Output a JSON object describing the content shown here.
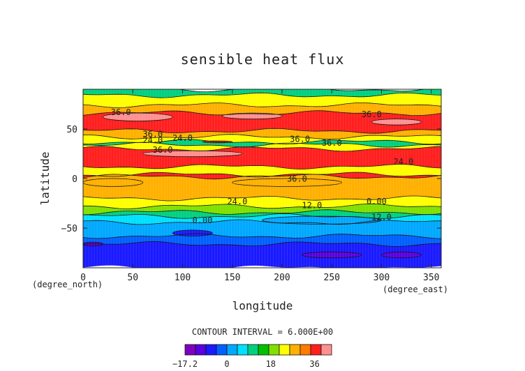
{
  "chart_data": {
    "type": "heatmap",
    "title": "sensible heat flux",
    "xlabel": "longitude",
    "ylabel": "latitude",
    "x_unit_label": "(degree_east)",
    "y_unit_label": "(degree_north)",
    "xlim": [
      0,
      360
    ],
    "ylim": [
      -90,
      90
    ],
    "x_ticks": [
      "0",
      "50",
      "100",
      "150",
      "200",
      "250",
      "300",
      "350"
    ],
    "y_ticks": [
      "50",
      "0",
      "−50"
    ],
    "contour_interval_text": "CONTOUR INTERVAL = 6.000E+00",
    "colorbar": {
      "tick_labels": [
        "−17.2",
        "0",
        "18",
        "36"
      ],
      "colors": [
        "#8000c0",
        "#5a00e0",
        "#1a1aff",
        "#0060ff",
        "#00a8ff",
        "#00e0ff",
        "#00d080",
        "#00c000",
        "#80e000",
        "#ffff00",
        "#ffb000",
        "#ff7a00",
        "#ff1f1f",
        "#ff9090"
      ]
    },
    "contour_labels": [
      "36.0",
      "36.0",
      "36.0",
      "24.0",
      "24.0",
      "36.0",
      "36.0",
      "36.0",
      "36.0",
      "24.0",
      "12.0",
      "24.0",
      "0.00",
      "0.00",
      "12.0"
    ],
    "bands": [
      {
        "lat_top": 90,
        "lat_bottom": 84,
        "value": 12
      },
      {
        "lat_top": 84,
        "lat_bottom": 74,
        "value": 24
      },
      {
        "lat_top": 74,
        "lat_bottom": 66,
        "value": 30
      },
      {
        "lat_top": 66,
        "lat_bottom": 48,
        "value": 36
      },
      {
        "lat_top": 48,
        "lat_bottom": 42,
        "value": 30
      },
      {
        "lat_top": 42,
        "lat_bottom": 37,
        "value": 24
      },
      {
        "lat_top": 37,
        "lat_bottom": 34,
        "value": 12
      },
      {
        "lat_top": 34,
        "lat_bottom": 30,
        "value": 24
      },
      {
        "lat_top": 30,
        "lat_bottom": 12,
        "value": 36
      },
      {
        "lat_top": 12,
        "lat_bottom": 4,
        "value": 24
      },
      {
        "lat_top": 4,
        "lat_bottom": -14,
        "value": 36
      },
      {
        "lat_top": 2,
        "lat_bottom": -20,
        "value": 30
      },
      {
        "lat_top": -20,
        "lat_bottom": -28,
        "value": 24
      },
      {
        "lat_top": -28,
        "lat_bottom": -34,
        "value": 18
      },
      {
        "lat_top": -34,
        "lat_bottom": -38,
        "value": 12
      },
      {
        "lat_top": -38,
        "lat_bottom": -44,
        "value": 6
      },
      {
        "lat_top": -44,
        "lat_bottom": -58,
        "value": 0
      },
      {
        "lat_top": -58,
        "lat_bottom": -66,
        "value": -3
      },
      {
        "lat_top": -66,
        "lat_bottom": -90,
        "value": -6
      }
    ],
    "patches": [
      {
        "lon": [
          20,
          90
        ],
        "lat": [
          58,
          66
        ],
        "value": 42
      },
      {
        "lon": [
          140,
          200
        ],
        "lat": [
          60,
          66
        ],
        "value": 42
      },
      {
        "lon": [
          290,
          340
        ],
        "lat": [
          54,
          60
        ],
        "value": 42
      },
      {
        "lon": [
          60,
          160
        ],
        "lat": [
          22,
          28
        ],
        "value": 42
      },
      {
        "lon": [
          120,
          150
        ],
        "lat": [
          36,
          38
        ],
        "value": 36
      },
      {
        "lon": [
          0,
          60
        ],
        "lat": [
          -8,
          0
        ],
        "value": 30
      },
      {
        "lon": [
          150,
          260
        ],
        "lat": [
          -8,
          0
        ],
        "value": 30
      },
      {
        "lon": [
          180,
          300
        ],
        "lat": [
          -46,
          -38
        ],
        "value": 0
      },
      {
        "lon": [
          220,
          280
        ],
        "lat": [
          -80,
          -74
        ],
        "value": -12
      },
      {
        "lon": [
          300,
          340
        ],
        "lat": [
          -80,
          -74
        ],
        "value": -12
      },
      {
        "lon": [
          0,
          20
        ],
        "lat": [
          -68,
          -64
        ],
        "value": -12
      },
      {
        "lon": [
          90,
          130
        ],
        "lat": [
          -58,
          -52
        ],
        "value": -6
      }
    ]
  }
}
